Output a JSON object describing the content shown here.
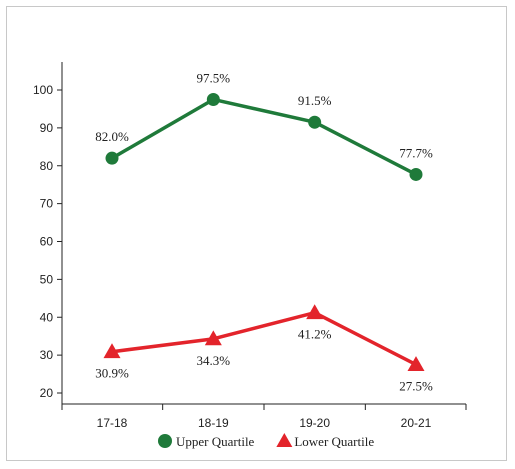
{
  "chart_data": {
    "type": "line",
    "categories": [
      "17-18",
      "18-19",
      "19-20",
      "20-21"
    ],
    "ylim": [
      20,
      100
    ],
    "yticks": [
      20,
      30,
      40,
      50,
      60,
      70,
      80,
      90,
      100
    ],
    "grid": false,
    "legend_position": "bottom",
    "series": [
      {
        "name": "Upper Quartile",
        "values": [
          82.0,
          97.5,
          91.5,
          77.7
        ],
        "labels": [
          "82.0%",
          "97.5%",
          "91.5%",
          "77.7%"
        ],
        "color": "#1f7a3a",
        "marker": "circle",
        "label_position": "above"
      },
      {
        "name": "Lower Quartile",
        "values": [
          30.9,
          34.3,
          41.2,
          27.5
        ],
        "labels": [
          "30.9%",
          "34.3%",
          "41.2%",
          "27.5%"
        ],
        "color": "#e3242b",
        "marker": "triangle",
        "label_position": "below"
      }
    ]
  }
}
